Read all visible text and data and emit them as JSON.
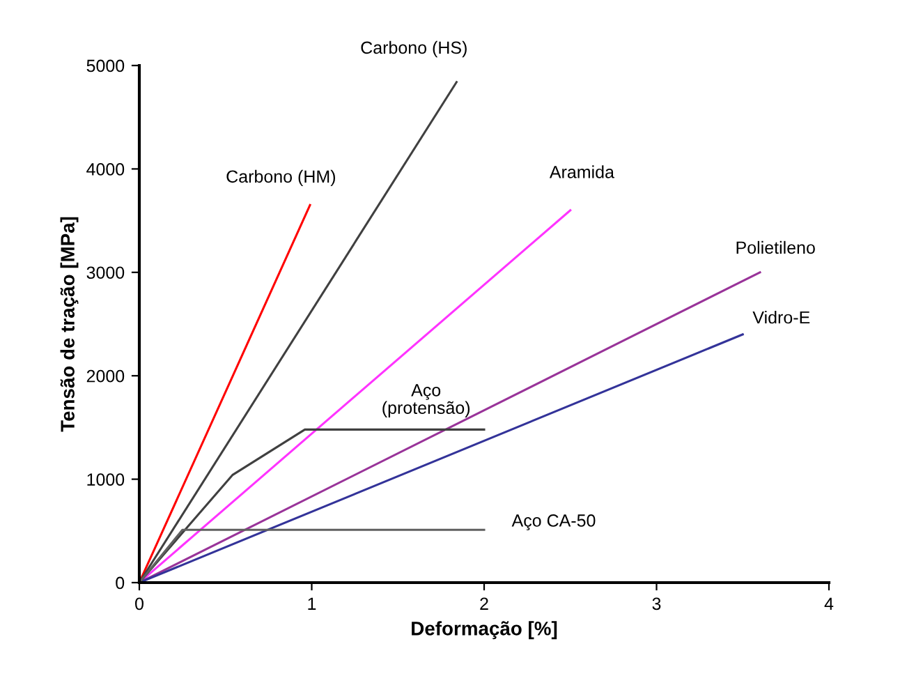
{
  "chart_data": {
    "type": "line",
    "xlabel": "Deformação [%]",
    "ylabel": "Tensão de tração [MPa]",
    "xlim": [
      0,
      4
    ],
    "ylim": [
      0,
      5000
    ],
    "xticks": [
      0,
      1,
      2,
      3,
      4
    ],
    "yticks": [
      0,
      1000,
      2000,
      3000,
      4000,
      5000
    ],
    "grid": false,
    "legend": false,
    "marker": "none",
    "line_style": "solid",
    "series": [
      {
        "name": "Carbono (HM)",
        "color": "#ff0000",
        "x": [
          0,
          0.99
        ],
        "values": [
          0,
          3650
        ]
      },
      {
        "name": "Carbono (HS)",
        "color": "#404040",
        "x": [
          0,
          1.84
        ],
        "values": [
          0,
          4840
        ]
      },
      {
        "name": "Aramida",
        "color": "#ff33ff",
        "x": [
          0,
          2.5
        ],
        "values": [
          0,
          3600
        ]
      },
      {
        "name": "Polietileno",
        "color": "#993399",
        "x": [
          0,
          3.6
        ],
        "values": [
          0,
          3000
        ]
      },
      {
        "name": "Vidro-E",
        "color": "#333399",
        "x": [
          0,
          3.5
        ],
        "values": [
          0,
          2400
        ]
      },
      {
        "name": "Aço\n(protensão)",
        "color": "#404040",
        "x": [
          0,
          0.54,
          0.96,
          2.0
        ],
        "values": [
          0,
          1040,
          1480,
          1480
        ]
      },
      {
        "name": "Aço CA-50",
        "color": "#606060",
        "x": [
          0,
          0.25,
          2.0
        ],
        "values": [
          0,
          510,
          510
        ]
      }
    ]
  }
}
